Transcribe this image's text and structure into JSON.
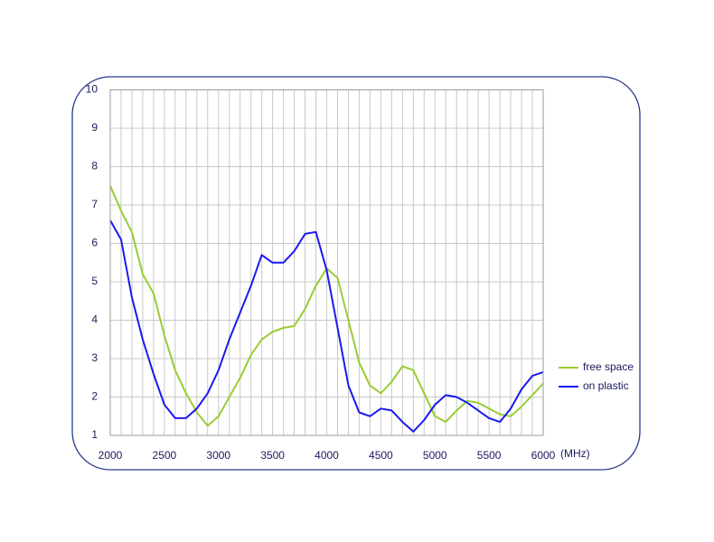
{
  "chart_data": {
    "type": "line",
    "x_unit": "(MHz)",
    "x": [
      2000,
      2100,
      2200,
      2300,
      2400,
      2500,
      2600,
      2700,
      2800,
      2900,
      3000,
      3100,
      3200,
      3300,
      3400,
      3500,
      3600,
      3700,
      3800,
      3900,
      4000,
      4100,
      4200,
      4300,
      4400,
      4500,
      4600,
      4700,
      4800,
      4900,
      5000,
      5100,
      5200,
      5300,
      5400,
      5500,
      5600,
      5700,
      5800,
      5900,
      6000
    ],
    "series": [
      {
        "name": "free space",
        "color": "#99cc33",
        "values": [
          7.5,
          6.85,
          6.3,
          5.2,
          4.7,
          3.6,
          2.7,
          2.1,
          1.6,
          1.25,
          1.5,
          2.0,
          2.5,
          3.1,
          3.5,
          3.7,
          3.8,
          3.85,
          4.3,
          4.9,
          5.35,
          5.1,
          4.0,
          2.9,
          2.3,
          2.1,
          2.4,
          2.8,
          2.7,
          2.1,
          1.5,
          1.35,
          1.65,
          1.9,
          1.85,
          1.7,
          1.55,
          1.5,
          1.75,
          2.05,
          2.35
        ]
      },
      {
        "name": "on plastic",
        "color": "#1a1aee",
        "values": [
          6.6,
          6.1,
          4.6,
          3.5,
          2.6,
          1.8,
          1.45,
          1.45,
          1.7,
          2.1,
          2.7,
          3.5,
          4.2,
          4.9,
          5.7,
          5.5,
          5.5,
          5.8,
          6.25,
          6.3,
          5.3,
          3.8,
          2.3,
          1.6,
          1.5,
          1.7,
          1.65,
          1.35,
          1.1,
          1.4,
          1.8,
          2.05,
          2.0,
          1.85,
          1.65,
          1.45,
          1.35,
          1.7,
          2.2,
          2.55,
          2.65
        ]
      }
    ],
    "xlim": [
      2000,
      6000
    ],
    "xticks": [
      2000,
      2500,
      3000,
      3500,
      4000,
      4500,
      5000,
      5500,
      6000
    ],
    "ylim": [
      1,
      10
    ],
    "yticks": [
      1,
      2,
      3,
      4,
      5,
      6,
      7,
      8,
      9,
      10
    ],
    "grid": true,
    "legend": "right"
  }
}
